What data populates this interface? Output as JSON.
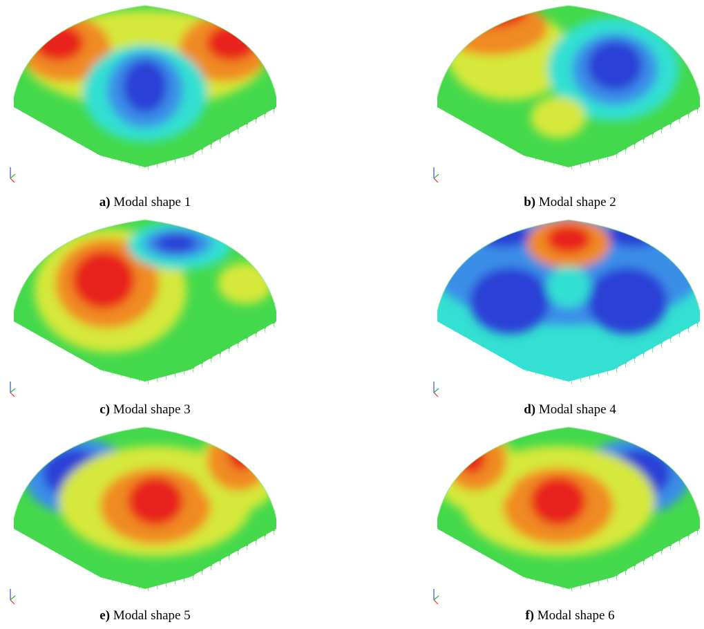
{
  "panels": [
    {
      "label": "a)",
      "caption": "Modal shape 1"
    },
    {
      "label": "b)",
      "caption": "Modal shape 2"
    },
    {
      "label": "c)",
      "caption": "Modal shape 3"
    },
    {
      "label": "d)",
      "caption": "Modal shape 4"
    },
    {
      "label": "e)",
      "caption": "Modal shape 5"
    },
    {
      "label": "f)",
      "caption": "Modal shape 6"
    }
  ]
}
